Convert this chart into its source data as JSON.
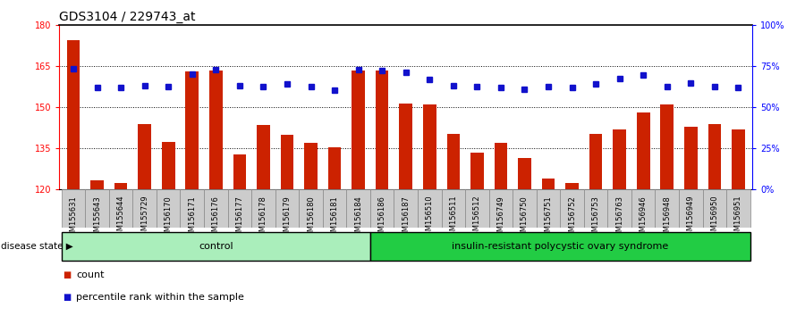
{
  "title": "GDS3104 / 229743_at",
  "samples": [
    "GSM155631",
    "GSM155643",
    "GSM155644",
    "GSM155729",
    "GSM156170",
    "GSM156171",
    "GSM156176",
    "GSM156177",
    "GSM156178",
    "GSM156179",
    "GSM156180",
    "GSM156181",
    "GSM156184",
    "GSM156186",
    "GSM156187",
    "GSM156510",
    "GSM156511",
    "GSM156512",
    "GSM156749",
    "GSM156750",
    "GSM156751",
    "GSM156752",
    "GSM156753",
    "GSM156763",
    "GSM156946",
    "GSM156948",
    "GSM156949",
    "GSM156950",
    "GSM156951"
  ],
  "bar_values": [
    174.5,
    123.5,
    122.5,
    144.0,
    137.5,
    163.0,
    163.5,
    133.0,
    143.5,
    140.0,
    137.0,
    135.5,
    163.5,
    163.5,
    151.5,
    151.0,
    140.5,
    133.5,
    137.0,
    131.5,
    124.0,
    122.5,
    140.5,
    142.0,
    148.0,
    151.0,
    143.0,
    144.0,
    142.0
  ],
  "percentile_values": [
    73.5,
    62.0,
    62.0,
    63.0,
    62.5,
    70.5,
    73.0,
    63.0,
    62.5,
    64.5,
    62.5,
    60.5,
    73.0,
    72.5,
    71.5,
    67.0,
    63.0,
    62.5,
    62.0,
    61.0,
    62.5,
    62.0,
    64.5,
    67.5,
    70.0,
    62.5,
    65.0,
    62.5,
    62.0
  ],
  "ctrl_count": 13,
  "disease_count": 16,
  "ylim": [
    120,
    180
  ],
  "yticks": [
    120,
    135,
    150,
    165,
    180
  ],
  "y2ticks": [
    0,
    25,
    50,
    75,
    100
  ],
  "y2tick_labels": [
    "0%",
    "25%",
    "50%",
    "75%",
    "100%"
  ],
  "hgrid_vals": [
    135,
    150,
    165
  ],
  "bar_color": "#CC2200",
  "dot_color": "#1111CC",
  "ctrl_color": "#AAEEBB",
  "disease_color": "#22CC44",
  "title_fontsize": 10,
  "tick_fontsize": 7,
  "group_fontsize": 8,
  "legend_fontsize": 8
}
